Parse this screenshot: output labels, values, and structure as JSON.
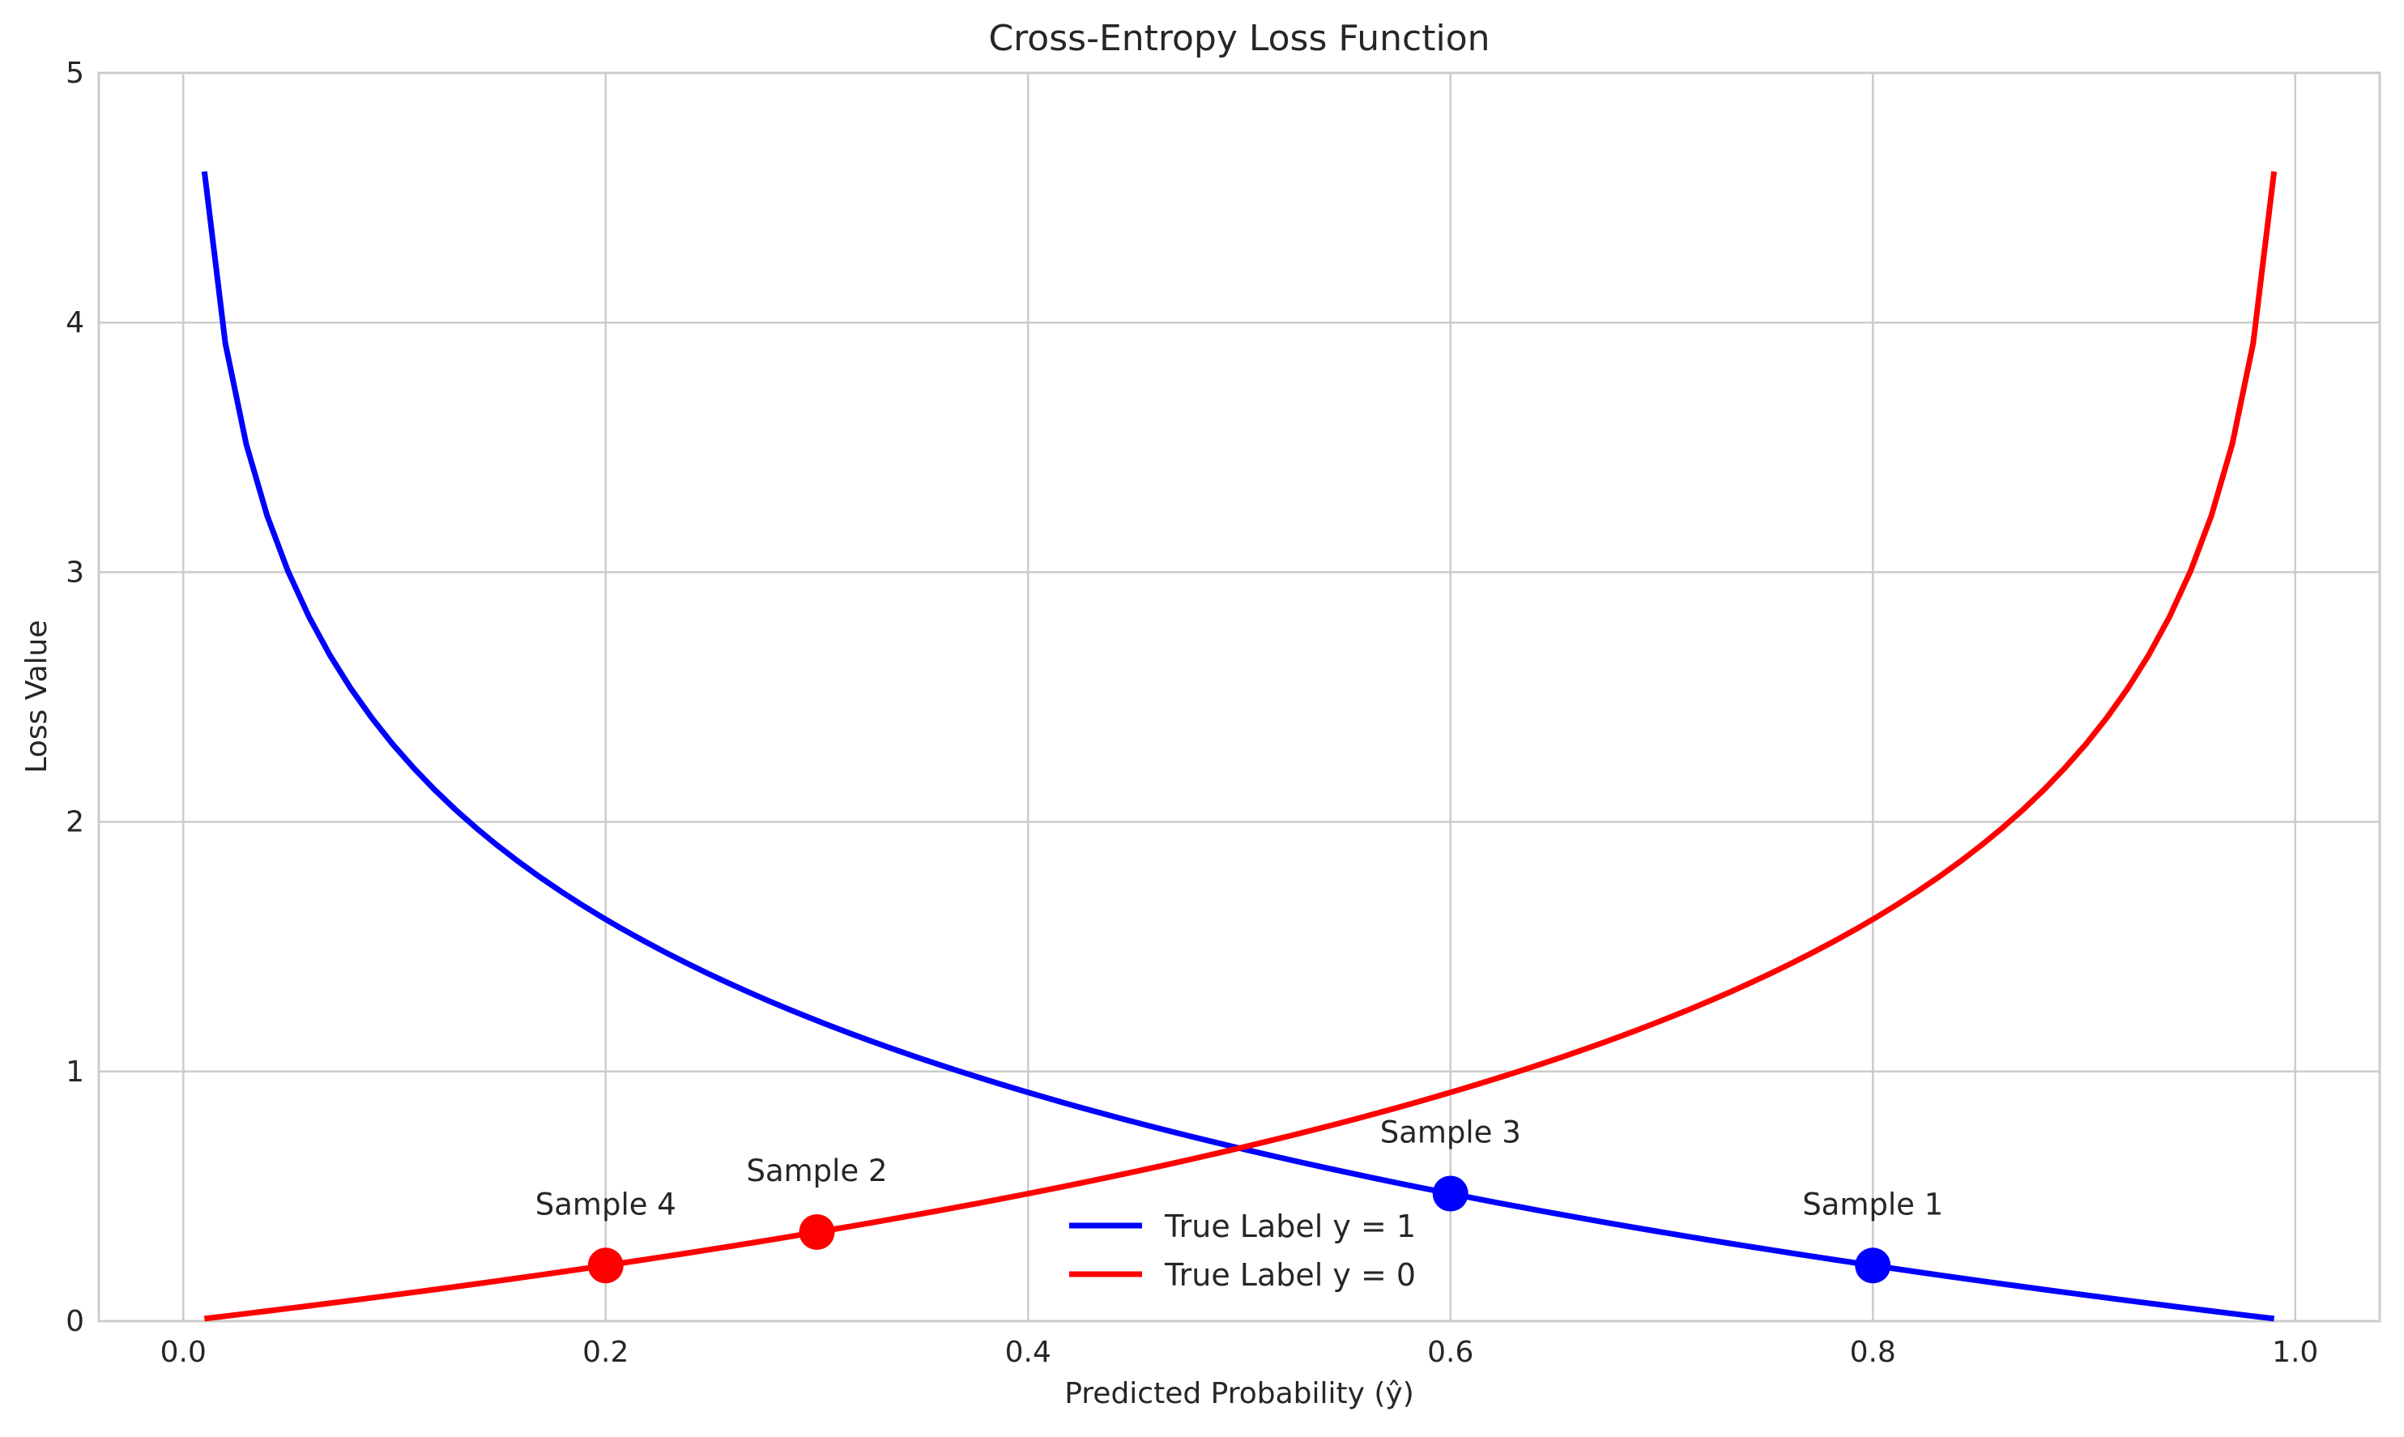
{
  "chart_data": {
    "type": "line",
    "title": "Cross-Entropy Loss Function",
    "xlabel": "Predicted Probability (ŷ)",
    "ylabel": "Loss Value",
    "xlim": [
      -0.04,
      1.04
    ],
    "ylim": [
      0,
      5
    ],
    "xticks": [
      0.0,
      0.2,
      0.4,
      0.6,
      0.8,
      1.0
    ],
    "xtick_labels": [
      "0.0",
      "0.2",
      "0.4",
      "0.6",
      "0.8",
      "1.0"
    ],
    "yticks": [
      0,
      1,
      2,
      3,
      4,
      5
    ],
    "ytick_labels": [
      "0",
      "1",
      "2",
      "3",
      "4",
      "5"
    ],
    "grid": true,
    "legend_position": "bottom-center",
    "x_range": [
      0.01,
      0.99
    ],
    "series": [
      {
        "name": "True Label y = 1",
        "color": "#0000ff",
        "function": "-ln(ŷ)"
      },
      {
        "name": "True Label y = 0",
        "color": "#ff0000",
        "function": "-ln(1-ŷ)"
      }
    ],
    "points": [
      {
        "label": "Sample 1",
        "x": 0.8,
        "y": 0.223,
        "color": "#0000ff"
      },
      {
        "label": "Sample 2",
        "x": 0.3,
        "y": 0.357,
        "color": "#ff0000"
      },
      {
        "label": "Sample 3",
        "x": 0.6,
        "y": 0.511,
        "color": "#0000ff"
      },
      {
        "label": "Sample 4",
        "x": 0.2,
        "y": 0.223,
        "color": "#ff0000"
      }
    ]
  }
}
